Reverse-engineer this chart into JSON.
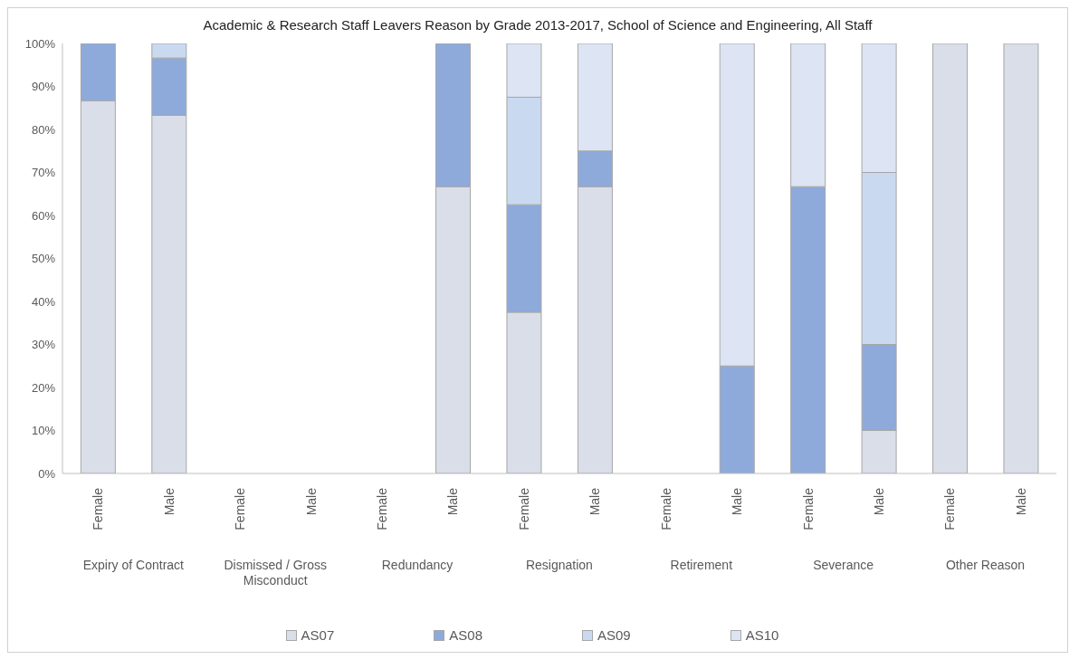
{
  "chart_data": {
    "type": "bar",
    "title": "Academic & Research Staff Leavers Reason by Grade 2013-2017, School of Science and Engineering, All Staff",
    "categories": [
      "Female",
      "Male",
      "Female",
      "Male",
      "Female",
      "Male",
      "Female",
      "Male",
      "Female",
      "Male",
      "Female",
      "Male",
      "Female",
      "Male"
    ],
    "annotations": [
      "Expiry of Contract",
      "Dismissed / Gross Misconduct",
      "Redundancy",
      "Resignation",
      "Retirement",
      "Severance",
      "Other Reason"
    ],
    "stacked": true,
    "series": [
      {
        "name": "AS07",
        "color": "#d9dee8",
        "values": [
          86.7,
          83.3,
          null,
          null,
          null,
          66.7,
          37.5,
          66.7,
          null,
          null,
          null,
          10,
          100,
          100
        ]
      },
      {
        "name": "AS08",
        "color": "#8eaadb",
        "values": [
          13.3,
          13.3,
          null,
          null,
          null,
          33.3,
          25,
          8.3,
          null,
          25,
          66.7,
          20,
          null,
          null
        ]
      },
      {
        "name": "AS09",
        "color": "#c9daf0",
        "values": [
          null,
          3.4,
          null,
          null,
          null,
          null,
          25,
          null,
          null,
          null,
          null,
          40,
          null,
          null
        ]
      },
      {
        "name": "AS10",
        "color": "#dde5f4",
        "values": [
          null,
          null,
          null,
          null,
          null,
          null,
          12.5,
          25,
          null,
          75,
          33.3,
          30,
          null,
          null
        ]
      }
    ],
    "ylim": [
      0,
      100
    ],
    "yticks": [
      {
        "value": 0,
        "label": "0%"
      },
      {
        "value": 10,
        "label": "10%"
      },
      {
        "value": 20,
        "label": "20%"
      },
      {
        "value": 30,
        "label": "30%"
      },
      {
        "value": 40,
        "label": "40%"
      },
      {
        "value": 50,
        "label": "50%"
      },
      {
        "value": 60,
        "label": "60%"
      },
      {
        "value": 70,
        "label": "70%"
      },
      {
        "value": 80,
        "label": "80%"
      },
      {
        "value": 90,
        "label": "90%"
      },
      {
        "value": 100,
        "label": "100%"
      }
    ],
    "legend": "bottom"
  }
}
